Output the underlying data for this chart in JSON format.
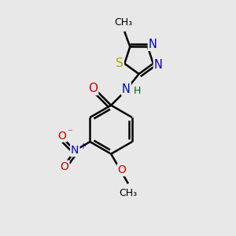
{
  "background_color": "#e8e8e8",
  "bond_color": "#000000",
  "bond_width": 1.8,
  "atom_colors": {
    "N": "#0000cc",
    "O": "#cc0000",
    "S": "#aaaa00",
    "C": "#000000",
    "H": "#006600"
  },
  "font_size": 10,
  "figsize": [
    3.0,
    3.0
  ],
  "dpi": 100
}
